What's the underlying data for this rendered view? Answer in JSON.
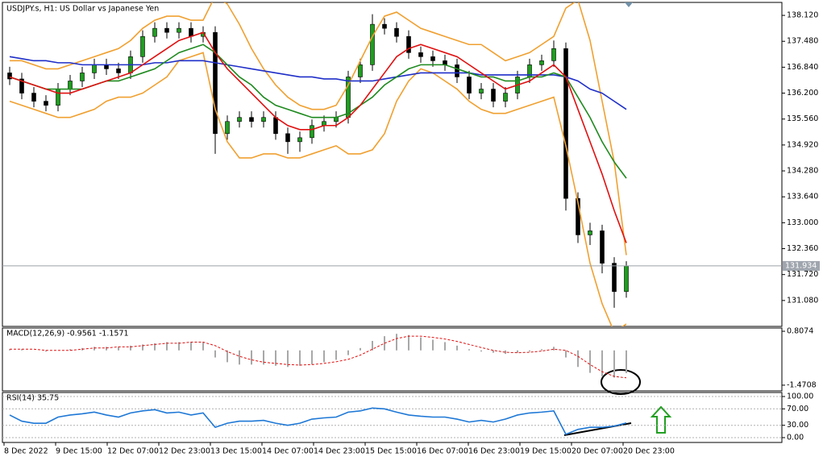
{
  "chart_data": [
    {
      "type": "candlestick",
      "title": "USDJPY.s, H1:  US Dollar vs Japanese Yen",
      "x_labels": [
        "8 Dec 2022",
        "9 Dec 15:00",
        "12 Dec 07:00",
        "12 Dec 23:00",
        "13 Dec 15:00",
        "14 Dec 07:00",
        "14 Dec 23:00",
        "15 Dec 15:00",
        "16 Dec 07:00",
        "16 Dec 23:00",
        "19 Dec 15:00",
        "20 Dec 07:00",
        "20 Dec 23:00"
      ],
      "up_color": "#1f9e1f",
      "down_color": "#000000",
      "ohlc": [
        [
          136.7,
          136.85,
          136.4,
          136.55
        ],
        [
          136.55,
          136.7,
          136.05,
          136.2
        ],
        [
          136.2,
          136.35,
          135.85,
          136.0
        ],
        [
          136.0,
          136.15,
          135.75,
          135.9
        ],
        [
          135.9,
          136.45,
          135.75,
          136.3
        ],
        [
          136.3,
          136.65,
          136.15,
          136.5
        ],
        [
          136.5,
          136.85,
          136.35,
          136.7
        ],
        [
          136.7,
          137.05,
          136.55,
          136.9
        ],
        [
          136.9,
          137.05,
          136.65,
          136.8
        ],
        [
          136.8,
          136.95,
          136.55,
          136.7
        ],
        [
          136.7,
          137.25,
          136.55,
          137.1
        ],
        [
          137.1,
          137.75,
          136.95,
          137.6
        ],
        [
          137.6,
          137.95,
          137.45,
          137.8
        ],
        [
          137.8,
          137.95,
          137.55,
          137.7
        ],
        [
          137.7,
          137.95,
          137.55,
          137.8
        ],
        [
          137.8,
          137.95,
          137.45,
          137.6
        ],
        [
          137.6,
          137.85,
          137.45,
          137.7
        ],
        [
          137.7,
          137.85,
          134.7,
          135.2
        ],
        [
          135.2,
          135.65,
          135.05,
          135.5
        ],
        [
          135.5,
          135.75,
          135.35,
          135.6
        ],
        [
          135.6,
          135.75,
          135.35,
          135.5
        ],
        [
          135.5,
          135.75,
          135.35,
          135.6
        ],
        [
          135.6,
          135.75,
          135.05,
          135.2
        ],
        [
          135.2,
          135.35,
          134.7,
          135.0
        ],
        [
          135.0,
          135.25,
          134.75,
          135.1
        ],
        [
          135.1,
          135.55,
          134.95,
          135.4
        ],
        [
          135.4,
          135.65,
          135.25,
          135.5
        ],
        [
          135.5,
          135.75,
          135.35,
          135.6
        ],
        [
          135.6,
          136.75,
          135.45,
          136.6
        ],
        [
          136.6,
          137.05,
          136.45,
          136.9
        ],
        [
          136.9,
          138.15,
          136.75,
          137.9
        ],
        [
          137.9,
          138.05,
          137.65,
          137.8
        ],
        [
          137.8,
          137.95,
          137.45,
          137.6
        ],
        [
          137.6,
          137.75,
          137.05,
          137.2
        ],
        [
          137.2,
          137.35,
          136.95,
          137.1
        ],
        [
          137.1,
          137.25,
          136.85,
          137.0
        ],
        [
          137.0,
          137.15,
          136.75,
          136.9
        ],
        [
          136.9,
          137.05,
          136.45,
          136.6
        ],
        [
          136.6,
          136.75,
          136.05,
          136.2
        ],
        [
          136.2,
          136.45,
          136.05,
          136.3
        ],
        [
          136.3,
          136.45,
          135.85,
          136.0
        ],
        [
          136.0,
          136.35,
          135.85,
          136.2
        ],
        [
          136.2,
          136.75,
          136.05,
          136.6
        ],
        [
          136.6,
          137.05,
          136.45,
          136.9
        ],
        [
          136.9,
          137.15,
          136.75,
          137.0
        ],
        [
          137.0,
          137.5,
          136.85,
          137.3
        ],
        [
          137.3,
          137.45,
          133.3,
          133.6
        ],
        [
          133.6,
          133.75,
          132.5,
          132.7
        ],
        [
          132.7,
          133.0,
          132.45,
          132.8
        ],
        [
          132.8,
          132.95,
          131.75,
          132.0
        ],
        [
          132.0,
          132.15,
          130.9,
          131.3
        ],
        [
          131.3,
          132.05,
          131.15,
          131.93
        ]
      ],
      "lines": [
        {
          "color": "#f0a030",
          "values": [
            137.0,
            137.0,
            136.9,
            136.8,
            136.8,
            136.9,
            137.0,
            137.1,
            137.2,
            137.3,
            137.5,
            137.8,
            138.0,
            138.1,
            138.1,
            138.0,
            138.0,
            138.6,
            138.4,
            137.9,
            137.3,
            136.8,
            136.4,
            136.1,
            135.9,
            135.8,
            135.8,
            135.9,
            136.4,
            137.0,
            137.6,
            138.1,
            138.2,
            138.0,
            137.8,
            137.7,
            137.6,
            137.5,
            137.4,
            137.4,
            137.2,
            137.0,
            137.1,
            137.2,
            137.4,
            137.6,
            138.3,
            138.5,
            137.5,
            136.0,
            134.5,
            132.2
          ]
        },
        {
          "color": "#f0a030",
          "values": [
            136.0,
            135.9,
            135.8,
            135.7,
            135.6,
            135.6,
            135.7,
            135.8,
            136.0,
            136.1,
            136.1,
            136.2,
            136.4,
            136.6,
            137.0,
            137.1,
            137.2,
            135.8,
            135.0,
            134.6,
            134.6,
            134.7,
            134.7,
            134.6,
            134.6,
            134.7,
            134.8,
            134.9,
            134.7,
            134.7,
            134.8,
            135.2,
            136.0,
            136.5,
            136.8,
            136.7,
            136.5,
            136.3,
            136.0,
            135.8,
            135.7,
            135.7,
            135.8,
            135.9,
            136.0,
            136.1,
            134.9,
            133.5,
            132.0,
            131.0,
            130.3,
            130.5
          ]
        },
        {
          "color": "#1f2fc8",
          "values": [
            137.1,
            137.05,
            137.0,
            137.0,
            136.95,
            136.95,
            136.9,
            136.9,
            136.9,
            136.9,
            136.9,
            136.9,
            136.95,
            136.95,
            137.0,
            137.0,
            137.0,
            136.95,
            136.9,
            136.85,
            136.8,
            136.75,
            136.7,
            136.65,
            136.6,
            136.6,
            136.55,
            136.55,
            136.5,
            136.5,
            136.5,
            136.55,
            136.6,
            136.65,
            136.7,
            136.7,
            136.7,
            136.7,
            136.7,
            136.65,
            136.65,
            136.65,
            136.65,
            136.65,
            136.65,
            136.65,
            136.6,
            136.5,
            136.3,
            136.2,
            136.0,
            135.8
          ]
        },
        {
          "color": "#1f8a1f",
          "values": [
            136.6,
            136.5,
            136.4,
            136.3,
            136.3,
            136.3,
            136.3,
            136.4,
            136.5,
            136.5,
            136.6,
            136.7,
            136.8,
            137.0,
            137.2,
            137.3,
            137.4,
            137.2,
            136.9,
            136.6,
            136.4,
            136.1,
            135.9,
            135.8,
            135.7,
            135.6,
            135.6,
            135.6,
            135.7,
            135.9,
            136.1,
            136.4,
            136.6,
            136.8,
            136.9,
            136.9,
            136.9,
            136.8,
            136.7,
            136.6,
            136.6,
            136.5,
            136.5,
            136.6,
            136.6,
            136.7,
            136.6,
            136.1,
            135.6,
            135.0,
            134.5,
            134.1
          ]
        },
        {
          "color": "#e01010",
          "values": [
            136.6,
            136.5,
            136.4,
            136.3,
            136.2,
            136.2,
            136.3,
            136.4,
            136.5,
            136.6,
            136.7,
            136.9,
            137.1,
            137.3,
            137.5,
            137.6,
            137.7,
            137.2,
            136.8,
            136.5,
            136.2,
            135.9,
            135.6,
            135.4,
            135.3,
            135.3,
            135.4,
            135.4,
            135.6,
            135.9,
            136.3,
            136.7,
            137.1,
            137.3,
            137.4,
            137.3,
            137.2,
            137.1,
            136.9,
            136.7,
            136.5,
            136.3,
            136.4,
            136.5,
            136.7,
            136.9,
            136.6,
            135.8,
            135.0,
            134.2,
            133.3,
            132.5
          ]
        }
      ],
      "ylim": [
        130.44,
        138.44
      ],
      "yticks": [
        {
          "value": 138.12,
          "label": "138.120"
        },
        {
          "value": 137.48,
          "label": "137.480"
        },
        {
          "value": 136.84,
          "label": "136.840"
        },
        {
          "value": 136.2,
          "label": "136.200"
        },
        {
          "value": 135.56,
          "label": "135.560"
        },
        {
          "value": 134.92,
          "label": "134.920"
        },
        {
          "value": 134.28,
          "label": "134.280"
        },
        {
          "value": 133.64,
          "label": "133.640"
        },
        {
          "value": 133.0,
          "label": "133.000"
        },
        {
          "value": 132.36,
          "label": "132.360"
        },
        {
          "value": 131.72,
          "label": "131.720"
        },
        {
          "value": 131.08,
          "label": "131.080"
        }
      ],
      "last_price": {
        "value": 131.934,
        "label": "131.934"
      }
    },
    {
      "type": "bar",
      "title": "MACD(12,26,9) -0.9561 -1.1571",
      "color": "#a8a8a8",
      "values": [
        0.05,
        0.05,
        0.0,
        -0.05,
        0.0,
        0.05,
        0.1,
        0.15,
        0.15,
        0.15,
        0.2,
        0.25,
        0.3,
        0.35,
        0.35,
        0.35,
        0.35,
        -0.3,
        -0.5,
        -0.6,
        -0.6,
        -0.6,
        -0.65,
        -0.7,
        -0.65,
        -0.6,
        -0.5,
        -0.4,
        -0.2,
        0.1,
        0.4,
        0.6,
        0.7,
        0.65,
        0.55,
        0.45,
        0.35,
        0.2,
        0.05,
        -0.05,
        -0.1,
        -0.15,
        -0.1,
        -0.05,
        0.05,
        0.15,
        -0.3,
        -0.7,
        -0.95,
        -1.1,
        -1.15,
        -0.96
      ],
      "lines": [
        {
          "color": "#e01010",
          "dash": true,
          "values": [
            0.05,
            0.05,
            0.05,
            0.0,
            0.0,
            0.0,
            0.05,
            0.1,
            0.1,
            0.15,
            0.15,
            0.2,
            0.25,
            0.3,
            0.3,
            0.35,
            0.35,
            0.2,
            -0.05,
            -0.25,
            -0.4,
            -0.5,
            -0.55,
            -0.6,
            -0.62,
            -0.6,
            -0.55,
            -0.48,
            -0.38,
            -0.2,
            0.05,
            0.3,
            0.5,
            0.6,
            0.6,
            0.55,
            0.48,
            0.38,
            0.25,
            0.12,
            0.0,
            -0.08,
            -0.1,
            -0.08,
            -0.03,
            0.05,
            0.0,
            -0.25,
            -0.6,
            -0.9,
            -1.1,
            -1.16
          ]
        }
      ],
      "ylim": [
        -1.712,
        0.945
      ],
      "yticks": [
        0.8074,
        -1.4708
      ]
    },
    {
      "type": "line",
      "title": "RSI(14) 35.75",
      "grid": true,
      "lines": [
        {
          "color": "#1e78d6",
          "values": [
            55,
            40,
            35,
            35,
            50,
            55,
            58,
            62,
            55,
            50,
            60,
            65,
            68,
            60,
            62,
            55,
            60,
            25,
            35,
            40,
            40,
            42,
            35,
            30,
            35,
            45,
            48,
            50,
            62,
            65,
            72,
            70,
            62,
            55,
            52,
            50,
            50,
            45,
            38,
            42,
            38,
            45,
            55,
            60,
            62,
            65,
            8,
            20,
            25,
            25,
            28,
            35.75
          ]
        }
      ],
      "ylim": [
        -11.8,
        109.8
      ],
      "yticks": [
        {
          "value": 100,
          "label": "100.00"
        },
        {
          "value": 70,
          "label": "70.00"
        },
        {
          "value": 30,
          "label": "30.00"
        },
        {
          "value": 0,
          "label": "0.00"
        }
      ]
    }
  ]
}
